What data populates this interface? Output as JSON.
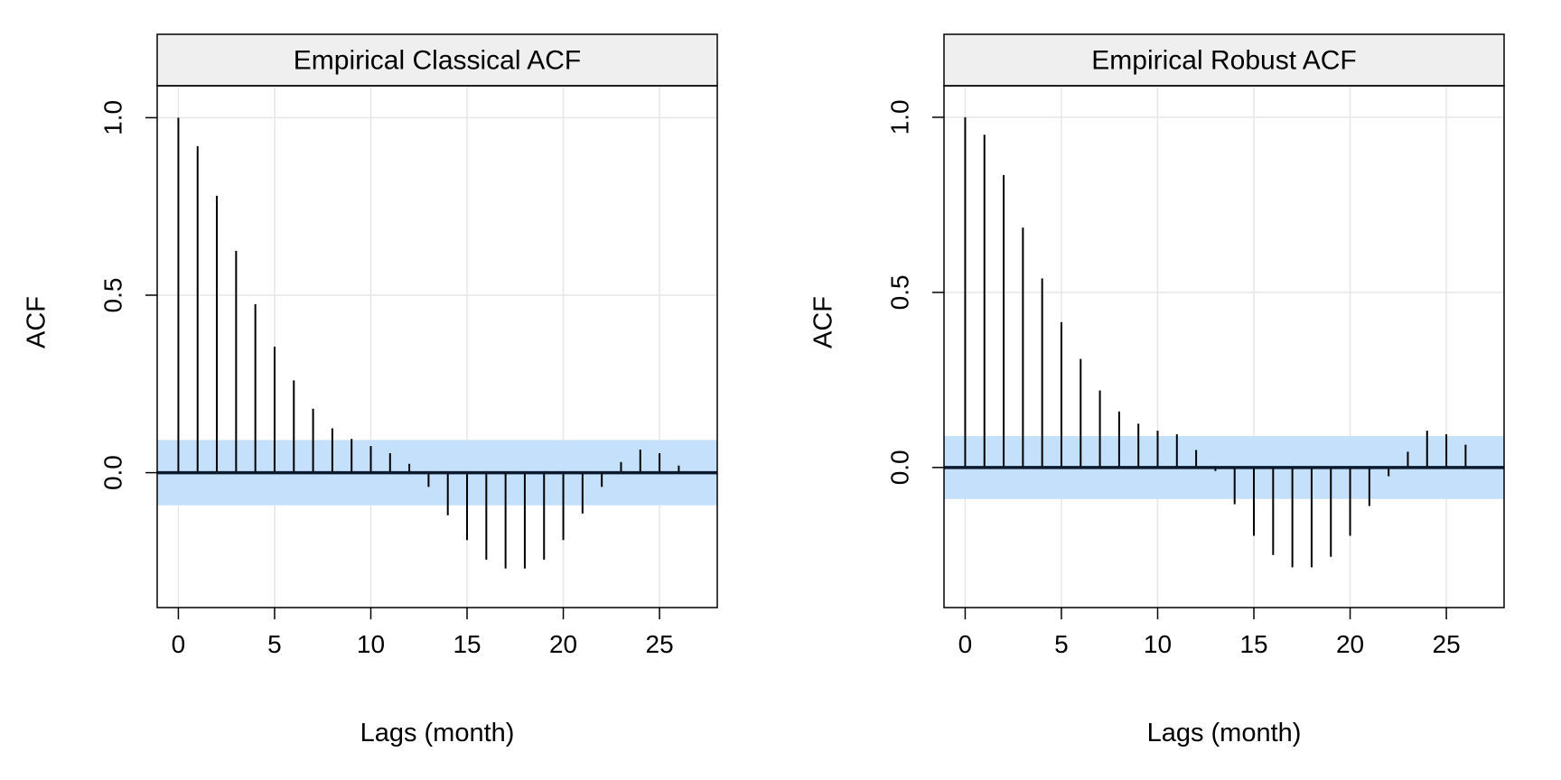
{
  "colors": {
    "band": "#c5e0fa",
    "strip": "#efefef",
    "grid": "#e6e6e6",
    "frame": "#000000",
    "zero_line": "#0b1a2e",
    "spike": "#000000"
  },
  "chart_data": [
    {
      "type": "bar",
      "title": "Empirical Classical ACF",
      "xlabel": "Lags (month)",
      "ylabel": "ACF",
      "xlim": [
        -1.1,
        28
      ],
      "ylim": [
        -0.38,
        1.09
      ],
      "x_ticks": [
        0,
        5,
        10,
        15,
        20,
        25
      ],
      "x_tick_labels": [
        "0",
        "5",
        "10",
        "15",
        "20",
        "25"
      ],
      "y_ticks": [
        0.0,
        0.5,
        1.0
      ],
      "y_tick_labels": [
        "0.0",
        "0.5",
        "1.0"
      ],
      "grid": true,
      "confidence_band": [
        -0.092,
        0.092
      ],
      "lags": [
        0,
        1,
        2,
        3,
        4,
        5,
        6,
        7,
        8,
        9,
        10,
        11,
        12,
        13,
        14,
        15,
        16,
        17,
        18,
        19,
        20,
        21,
        22,
        23,
        24,
        25,
        26
      ],
      "values": [
        1.0,
        0.92,
        0.78,
        0.625,
        0.475,
        0.355,
        0.26,
        0.18,
        0.125,
        0.095,
        0.075,
        0.055,
        0.025,
        -0.04,
        -0.12,
        -0.19,
        -0.245,
        -0.27,
        -0.27,
        -0.245,
        -0.19,
        -0.115,
        -0.04,
        0.03,
        0.065,
        0.055,
        0.02
      ]
    },
    {
      "type": "bar",
      "title": "Empirical Robust ACF",
      "xlabel": "Lags (month)",
      "ylabel": "ACF",
      "xlim": [
        -1.1,
        28
      ],
      "ylim": [
        -0.4,
        1.09
      ],
      "x_ticks": [
        0,
        5,
        10,
        15,
        20,
        25
      ],
      "x_tick_labels": [
        "0",
        "5",
        "10",
        "15",
        "20",
        "25"
      ],
      "y_ticks": [
        0.0,
        0.5,
        1.0
      ],
      "y_tick_labels": [
        "0.0",
        "0.5",
        "1.0"
      ],
      "grid": true,
      "confidence_band": [
        -0.09,
        0.09
      ],
      "lags": [
        0,
        1,
        2,
        3,
        4,
        5,
        6,
        7,
        8,
        9,
        10,
        11,
        12,
        13,
        14,
        15,
        16,
        17,
        18,
        19,
        20,
        21,
        22,
        23,
        24,
        25,
        26
      ],
      "values": [
        1.0,
        0.95,
        0.835,
        0.685,
        0.54,
        0.415,
        0.31,
        0.22,
        0.16,
        0.125,
        0.105,
        0.095,
        0.05,
        -0.01,
        -0.105,
        -0.195,
        -0.25,
        -0.285,
        -0.285,
        -0.255,
        -0.195,
        -0.11,
        -0.025,
        0.045,
        0.105,
        0.095,
        0.065
      ]
    }
  ]
}
